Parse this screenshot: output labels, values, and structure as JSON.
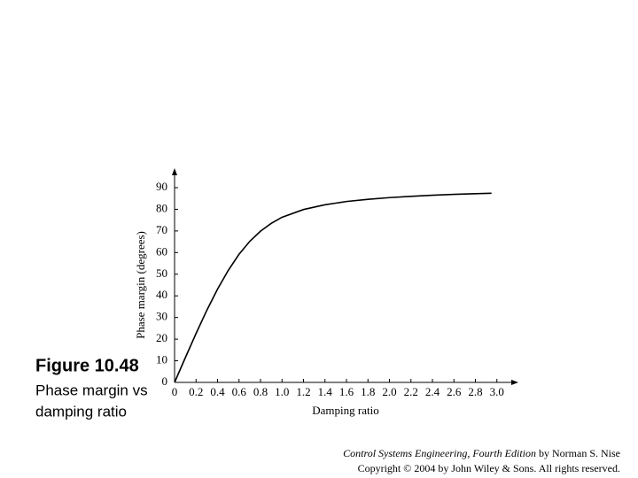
{
  "chart_data": {
    "type": "line",
    "x_label": "Damping ratio",
    "y_label": "Phase margin (degrees)",
    "x": [
      0,
      0.1,
      0.2,
      0.3,
      0.4,
      0.5,
      0.6,
      0.7,
      0.8,
      0.9,
      1.0,
      1.2,
      1.4,
      1.6,
      1.8,
      2.0,
      2.2,
      2.4,
      2.6,
      2.8,
      2.95
    ],
    "values": [
      0,
      11.4,
      22.6,
      33.3,
      43.1,
      51.8,
      59.2,
      65.2,
      69.9,
      73.5,
      76.3,
      79.9,
      82.1,
      83.6,
      84.6,
      85.4,
      86.0,
      86.5,
      86.9,
      87.2,
      87.4
    ],
    "color": "#000000",
    "xlim": [
      0,
      3.2
    ],
    "ylim": [
      0,
      99
    ],
    "xticks": [
      0,
      0.2,
      0.4,
      0.6,
      0.8,
      {
        "value": 1,
        "label": "1.0"
      },
      1.2,
      1.4,
      1.6,
      1.8,
      {
        "value": 2,
        "label": "2.0"
      },
      2.2,
      2.4,
      2.6,
      2.8,
      {
        "value": 3,
        "label": "3.0"
      }
    ],
    "yticks": [
      0,
      10,
      20,
      30,
      40,
      50,
      60,
      70,
      80,
      90
    ]
  },
  "caption": {
    "figure": "Figure 10.48",
    "line1": "Phase margin vs",
    "line2": "damping ratio"
  },
  "footer": {
    "book": "Control Systems Engineering, Fourth Edition",
    "author": "by Norman S. Nise",
    "copyright": "Copyright © 2004 by John Wiley & Sons. All rights reserved."
  }
}
